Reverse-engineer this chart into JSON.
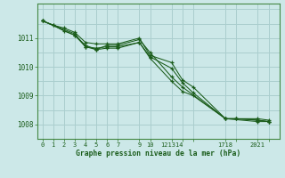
{
  "title": "Graphe pression niveau de la mer (hPa)",
  "bg_color": "#cce8e8",
  "line_color": "#1a5c1a",
  "grid_color": "#aacece",
  "spine_color": "#448844",
  "tick_color": "#1a5c1a",
  "ylim": [
    1007.5,
    1012.2
  ],
  "xlim": [
    -0.5,
    22.0
  ],
  "yticks": [
    1008,
    1009,
    1010,
    1011
  ],
  "xtick_positions": [
    0,
    1,
    2,
    3,
    4,
    5,
    6,
    7,
    9,
    10,
    12,
    13,
    14,
    17,
    18,
    20,
    21
  ],
  "xtick_labels": [
    "0",
    "1",
    "2",
    "3",
    "4",
    "5",
    "6",
    "7",
    "9",
    "10",
    "121314",
    "",
    "",
    "1718",
    "",
    "2021",
    ""
  ],
  "series": [
    {
      "x": [
        0,
        1,
        2,
        3,
        4,
        5,
        6,
        7,
        9,
        10,
        12,
        13,
        14,
        17,
        18,
        20,
        21
      ],
      "y": [
        1011.6,
        1011.45,
        1011.35,
        1011.2,
        1010.85,
        1010.8,
        1010.8,
        1010.8,
        1011.0,
        1010.4,
        1010.15,
        1009.55,
        1009.3,
        1008.2,
        1008.2,
        1008.2,
        1008.15
      ]
    },
    {
      "x": [
        0,
        1,
        2,
        3,
        4,
        5,
        6,
        7,
        9,
        10,
        12,
        13,
        14,
        17,
        18,
        20,
        21
      ],
      "y": [
        1011.6,
        1011.45,
        1011.25,
        1011.1,
        1010.7,
        1010.65,
        1010.7,
        1010.7,
        1010.85,
        1010.35,
        1009.95,
        1009.45,
        1009.1,
        1008.2,
        1008.2,
        1008.15,
        1008.1
      ]
    },
    {
      "x": [
        0,
        3,
        4,
        5,
        6,
        7,
        9,
        10,
        12,
        13,
        17,
        18,
        20,
        21
      ],
      "y": [
        1011.6,
        1011.15,
        1010.7,
        1010.6,
        1010.75,
        1010.75,
        1010.95,
        1010.5,
        1009.65,
        1009.3,
        1008.2,
        1008.2,
        1008.15,
        1008.1
      ]
    },
    {
      "x": [
        0,
        3,
        4,
        5,
        6,
        7,
        9,
        10,
        12,
        13,
        14,
        17,
        20,
        21
      ],
      "y": [
        1011.6,
        1011.1,
        1010.75,
        1010.6,
        1010.65,
        1010.65,
        1010.85,
        1010.3,
        1009.5,
        1009.15,
        1009.0,
        1008.2,
        1008.1,
        1008.1
      ]
    }
  ]
}
